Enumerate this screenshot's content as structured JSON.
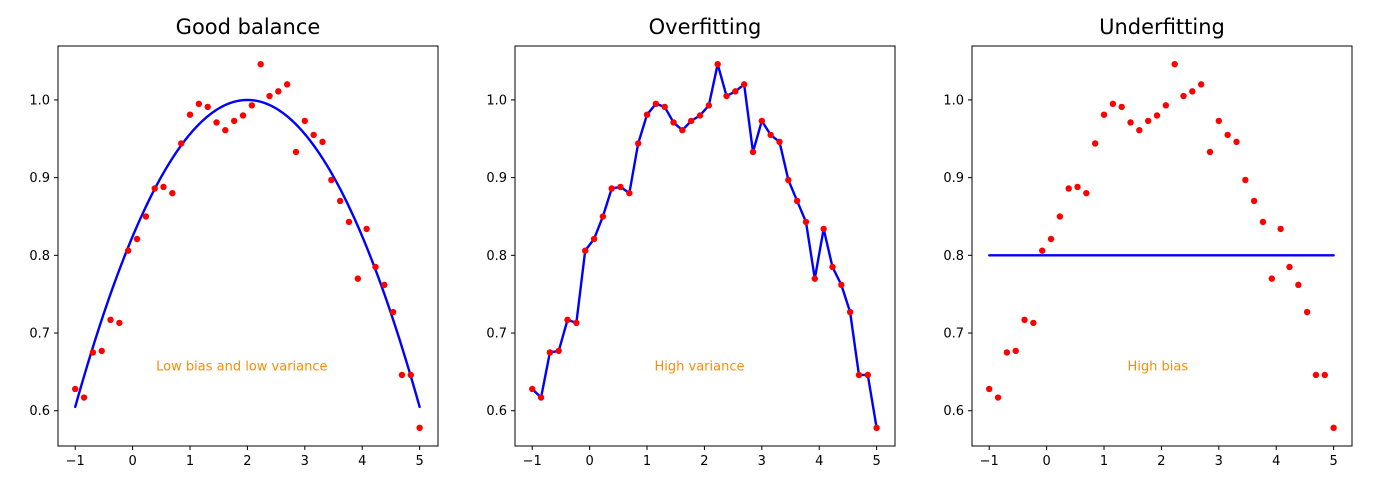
{
  "palette": {
    "background": "#ffffff",
    "scatter_color": "#ff0000",
    "line_color": "#0000ff",
    "annotation_color": "#ff8c00",
    "axis_color": "#000000"
  },
  "chart_data": [
    {
      "type": "scatter",
      "title": "Good balance",
      "annotation": {
        "text": "Low bias and low variance",
        "x": 0.41,
        "y": 0.652
      },
      "x": [
        -1.0,
        -0.846,
        -0.692,
        -0.538,
        -0.385,
        -0.231,
        -0.077,
        0.077,
        0.231,
        0.385,
        0.538,
        0.692,
        0.846,
        1.0,
        1.154,
        1.308,
        1.462,
        1.615,
        1.769,
        1.923,
        2.077,
        2.231,
        2.385,
        2.538,
        2.692,
        2.846,
        3.0,
        3.154,
        3.308,
        3.462,
        3.615,
        3.769,
        3.923,
        4.077,
        4.231,
        4.385,
        4.538,
        4.692,
        4.846,
        5.0
      ],
      "y": [
        0.628,
        0.617,
        0.675,
        0.677,
        0.717,
        0.713,
        0.806,
        0.821,
        0.85,
        0.886,
        0.888,
        0.88,
        0.944,
        0.981,
        0.995,
        0.991,
        0.971,
        0.961,
        0.973,
        0.98,
        0.993,
        1.046,
        1.005,
        1.011,
        1.02,
        0.933,
        0.973,
        0.955,
        0.946,
        0.897,
        0.87,
        0.843,
        0.77,
        0.834,
        0.785,
        0.762,
        0.727,
        0.646,
        0.646,
        0.578
      ],
      "fit_line": {
        "kind": "parabola",
        "vertex_x": 2.0,
        "vertex_y": 1.0,
        "a": -0.0439,
        "x_start": -1.0,
        "x_end": 5.0
      },
      "xlim": [
        -1.3,
        5.32
      ],
      "ylim": [
        0.5546,
        1.0694
      ],
      "xticks": [
        -1,
        0,
        1,
        2,
        3,
        4,
        5
      ],
      "xtick_labels": [
        "−1",
        "0",
        "1",
        "2",
        "3",
        "4",
        "5"
      ],
      "yticks": [
        0.6,
        0.7,
        0.8,
        0.9,
        1.0
      ],
      "ytick_labels": [
        "0.6",
        "0.7",
        "0.8",
        "0.9",
        "1.0"
      ],
      "grid": false,
      "legend": null
    },
    {
      "type": "scatter",
      "title": "Overfitting",
      "annotation": {
        "text": "High variance",
        "x": 1.13,
        "y": 0.652
      },
      "x": [
        -1.0,
        -0.846,
        -0.692,
        -0.538,
        -0.385,
        -0.231,
        -0.077,
        0.077,
        0.231,
        0.385,
        0.538,
        0.692,
        0.846,
        1.0,
        1.154,
        1.308,
        1.462,
        1.615,
        1.769,
        1.923,
        2.077,
        2.231,
        2.385,
        2.538,
        2.692,
        2.846,
        3.0,
        3.154,
        3.308,
        3.462,
        3.615,
        3.769,
        3.923,
        4.077,
        4.231,
        4.385,
        4.538,
        4.692,
        4.846,
        5.0
      ],
      "y": [
        0.628,
        0.617,
        0.675,
        0.677,
        0.717,
        0.713,
        0.806,
        0.821,
        0.85,
        0.886,
        0.888,
        0.88,
        0.944,
        0.981,
        0.995,
        0.991,
        0.971,
        0.961,
        0.973,
        0.98,
        0.993,
        1.046,
        1.005,
        1.011,
        1.02,
        0.933,
        0.973,
        0.955,
        0.946,
        0.897,
        0.87,
        0.843,
        0.77,
        0.834,
        0.785,
        0.762,
        0.727,
        0.646,
        0.646,
        0.578
      ],
      "fit_line": {
        "kind": "through-points"
      },
      "xlim": [
        -1.3,
        5.32
      ],
      "ylim": [
        0.5546,
        1.0694
      ],
      "xticks": [
        -1,
        0,
        1,
        2,
        3,
        4,
        5
      ],
      "xtick_labels": [
        "−1",
        "0",
        "1",
        "2",
        "3",
        "4",
        "5"
      ],
      "yticks": [
        0.6,
        0.7,
        0.8,
        0.9,
        1.0
      ],
      "ytick_labels": [
        "0.6",
        "0.7",
        "0.8",
        "0.9",
        "1.0"
      ],
      "grid": false,
      "legend": null
    },
    {
      "type": "scatter",
      "title": "Underfitting",
      "annotation": {
        "text": "High bias",
        "x": 1.41,
        "y": 0.652
      },
      "x": [
        -1.0,
        -0.846,
        -0.692,
        -0.538,
        -0.385,
        -0.231,
        -0.077,
        0.077,
        0.231,
        0.385,
        0.538,
        0.692,
        0.846,
        1.0,
        1.154,
        1.308,
        1.462,
        1.615,
        1.769,
        1.923,
        2.077,
        2.231,
        2.385,
        2.538,
        2.692,
        2.846,
        3.0,
        3.154,
        3.308,
        3.462,
        3.615,
        3.769,
        3.923,
        4.077,
        4.231,
        4.385,
        4.538,
        4.692,
        4.846,
        5.0
      ],
      "y": [
        0.628,
        0.617,
        0.675,
        0.677,
        0.717,
        0.713,
        0.806,
        0.821,
        0.85,
        0.886,
        0.888,
        0.88,
        0.944,
        0.981,
        0.995,
        0.991,
        0.971,
        0.961,
        0.973,
        0.98,
        0.993,
        1.046,
        1.005,
        1.011,
        1.02,
        0.933,
        0.973,
        0.955,
        0.946,
        0.897,
        0.87,
        0.843,
        0.77,
        0.834,
        0.785,
        0.762,
        0.727,
        0.646,
        0.646,
        0.578
      ],
      "fit_line": {
        "kind": "constant",
        "y": 0.8,
        "x_start": -1.0,
        "x_end": 5.0
      },
      "xlim": [
        -1.3,
        5.32
      ],
      "ylim": [
        0.5546,
        1.0694
      ],
      "xticks": [
        -1,
        0,
        1,
        2,
        3,
        4,
        5
      ],
      "xtick_labels": [
        "−1",
        "0",
        "1",
        "2",
        "3",
        "4",
        "5"
      ],
      "yticks": [
        0.6,
        0.7,
        0.8,
        0.9,
        1.0
      ],
      "ytick_labels": [
        "0.6",
        "0.7",
        "0.8",
        "0.9",
        "1.0"
      ],
      "grid": false,
      "legend": null
    }
  ]
}
